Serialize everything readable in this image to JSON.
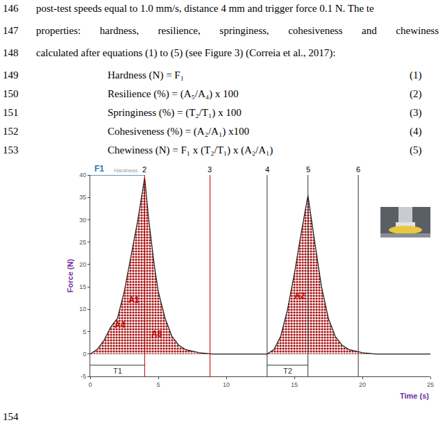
{
  "document": {
    "lines": [
      {
        "number": "146",
        "text": "post-test speeds equal to 1.0 mm/s, distance 4 mm and trigger force 0.1 N. The te"
      },
      {
        "number": "147",
        "text": "properties: hardness, resilience, springiness, cohesiveness and chewiness"
      },
      {
        "number": "148",
        "text": "calculated after equations (1) to (5) (see Figure 3) (Correia et al., 2017):"
      }
    ],
    "equations": [
      {
        "number": "149",
        "formula": "Hardness (N) = F₁",
        "tag": "(1)"
      },
      {
        "number": "150",
        "formula": "Resilience (%) = (A₅/A₄) x 100",
        "tag": "(2)"
      },
      {
        "number": "151",
        "formula": "Springiness (%) = (T₂/T₁) x 100",
        "tag": "(3)"
      },
      {
        "number": "152",
        "formula": "Cohesiveness (%) = (A₂/A₁) x100",
        "tag": "(4)"
      },
      {
        "number": "153",
        "formula": "Chewiness (N) = F₁ x (T₂/T₁) x (A₂/A₁)",
        "tag": "(5)"
      }
    ],
    "figure_line": "154"
  },
  "chart_data": {
    "type": "area",
    "x_label": "Time (s)",
    "y_label": "Force (N)",
    "x": [
      0,
      0.5,
      1,
      1.5,
      2,
      2.5,
      3,
      3.5,
      4,
      4.3,
      4.7,
      5,
      5.5,
      6,
      6.5,
      7,
      8,
      9,
      10,
      11,
      12,
      13,
      13.5,
      14,
      14.5,
      15,
      15.5,
      16,
      16.5,
      17,
      17.5,
      18,
      18.5,
      19,
      20,
      21,
      22,
      25
    ],
    "values": [
      0,
      1,
      3,
      6,
      8,
      14,
      22,
      30,
      39.5,
      30,
      20,
      14,
      8,
      4,
      2,
      1,
      0.3,
      0,
      0,
      0,
      0,
      0,
      1,
      4,
      10,
      18,
      27,
      35.5,
      25,
      15,
      8,
      4,
      2,
      1,
      0.3,
      0,
      0,
      0
    ],
    "color": "#a01010",
    "xlim": [
      0,
      25
    ],
    "ylim": [
      -5,
      40
    ],
    "xticks": [
      0,
      5,
      10,
      15,
      20,
      25
    ],
    "yticks": [
      -5,
      0,
      5,
      10,
      15,
      20,
      25,
      30,
      35,
      40
    ],
    "grid": false,
    "markers": [
      {
        "x": 4,
        "label": "2",
        "color": "#c00000"
      },
      {
        "x": 8.8,
        "label": "3",
        "color": "#c00000"
      },
      {
        "x": 13,
        "label": "4",
        "color": "#333333"
      },
      {
        "x": 16,
        "label": "5",
        "color": "#333333"
      },
      {
        "x": 19.7,
        "label": "6",
        "color": "#333333"
      }
    ],
    "hardness_label": {
      "text": "Hardness",
      "x": 4,
      "color": "#999999"
    },
    "f1": {
      "text": "F1",
      "x": [
        0,
        4
      ],
      "y": 40,
      "color": "#2e75b6"
    },
    "intervals": [
      {
        "text": "T1",
        "x": [
          0,
          4
        ],
        "y": -2.5
      },
      {
        "text": "T2",
        "x": [
          13,
          16
        ],
        "y": -2.5
      }
    ],
    "annotations": [
      {
        "text": "A1",
        "x": 3.2,
        "y": 12,
        "color": "#c00000"
      },
      {
        "text": "A4",
        "x": 2.2,
        "y": 6.5,
        "color": "#c00000"
      },
      {
        "text": "A5",
        "x": 4.9,
        "y": 4.5,
        "color": "#c00000"
      },
      {
        "text": "A2",
        "x": 15.4,
        "y": 13,
        "color": "#c00000"
      }
    ]
  }
}
